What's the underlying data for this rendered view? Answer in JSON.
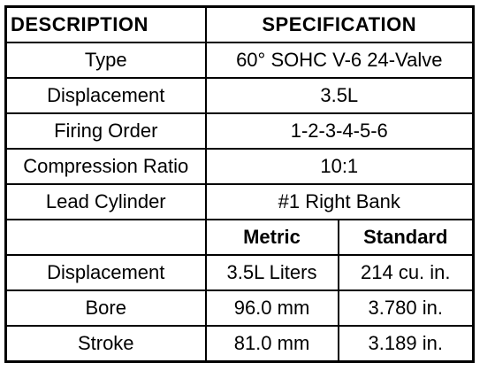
{
  "header": {
    "col1": "DESCRIPTION",
    "col2": "SPECIFICATION"
  },
  "rows": [
    {
      "label": "Type",
      "value": "60° SOHC V-6 24-Valve"
    },
    {
      "label": "Displacement",
      "value": "3.5L"
    },
    {
      "label": "Firing Order",
      "value": "1-2-3-4-5-6"
    },
    {
      "label": "Compression Ratio",
      "value": "10:1"
    },
    {
      "label": "Lead Cylinder",
      "value": "#1 Right Bank"
    }
  ],
  "units_header": {
    "blank": "",
    "metric": "Metric",
    "standard": "Standard"
  },
  "dimension_rows": [
    {
      "label": "Displacement",
      "metric": "3.5L Liters",
      "standard": "214 cu. in."
    },
    {
      "label": "Bore",
      "metric": "96.0 mm",
      "standard": "3.780 in."
    },
    {
      "label": "Stroke",
      "metric": "81.0 mm",
      "standard": "3.189 in."
    }
  ]
}
